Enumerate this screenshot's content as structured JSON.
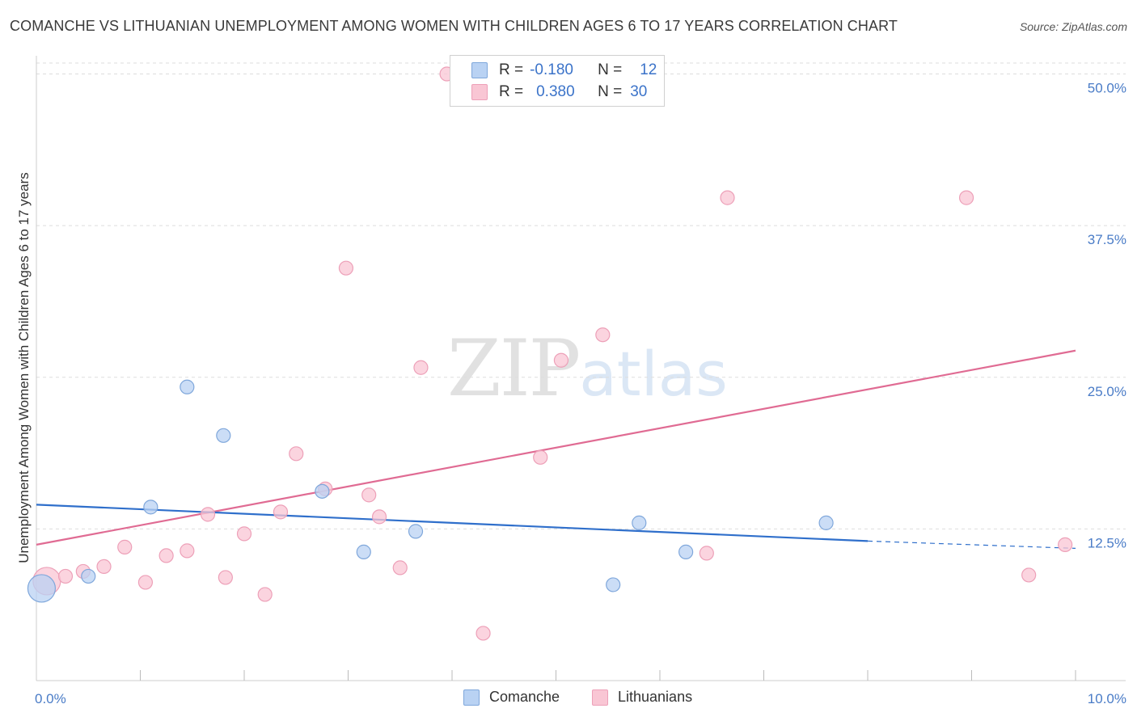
{
  "title": "COMANCHE VS LITHUANIAN UNEMPLOYMENT AMONG WOMEN WITH CHILDREN AGES 6 TO 17 YEARS CORRELATION CHART",
  "source": "Source: ZipAtlas.com",
  "watermark": {
    "zip": "ZIP",
    "atlas": "atlas"
  },
  "legend": {
    "comanche": {
      "r_label": "R =",
      "r_value": "-0.180",
      "n_label": "N =",
      "n_value": "12"
    },
    "lithuanians": {
      "r_label": "R =",
      "r_value": "0.380",
      "n_label": "N =",
      "n_value": "30"
    }
  },
  "bottom_legend": {
    "comanche": "Comanche",
    "lithuanians": "Lithuanians"
  },
  "colors": {
    "comanche_fill": "#b9d2f3",
    "comanche_stroke": "#7fa7db",
    "comanche_line": "#2f6fcb",
    "lithuanians_fill": "#f9c6d4",
    "lithuanians_stroke": "#eda0b8",
    "lithuanians_line": "#e06b93",
    "tick_label": "#4a7cc7",
    "grid": "#dddddd"
  },
  "chart_data": {
    "type": "scatter",
    "title": "COMANCHE VS LITHUANIAN UNEMPLOYMENT AMONG WOMEN WITH CHILDREN AGES 6 TO 17 YEARS CORRELATION CHART",
    "xlabel": "",
    "ylabel": "Unemployment Among Women with Children Ages 6 to 17 years",
    "xlim": [
      0,
      10
    ],
    "ylim": [
      0,
      51.5
    ],
    "x_tick_labels": [
      "0.0%",
      "10.0%"
    ],
    "y_ticks": [
      12.5,
      25.0,
      37.5,
      50.0
    ],
    "y_tick_labels": [
      "12.5%",
      "25.0%",
      "37.5%",
      "50.0%"
    ],
    "series": [
      {
        "name": "Comanche",
        "points": [
          {
            "x": 0.05,
            "y": 7.6,
            "big": true
          },
          {
            "x": 0.5,
            "y": 8.6
          },
          {
            "x": 1.1,
            "y": 14.3
          },
          {
            "x": 1.45,
            "y": 24.2
          },
          {
            "x": 1.8,
            "y": 20.2
          },
          {
            "x": 2.75,
            "y": 15.6
          },
          {
            "x": 3.15,
            "y": 10.6
          },
          {
            "x": 3.65,
            "y": 12.3
          },
          {
            "x": 5.55,
            "y": 7.9
          },
          {
            "x": 5.8,
            "y": 13.0
          },
          {
            "x": 6.25,
            "y": 10.6
          },
          {
            "x": 7.6,
            "y": 13.0
          }
        ],
        "trend": {
          "x0": 0,
          "y0": 14.5,
          "x1": 8.0,
          "y1": 11.5,
          "dashed_to_x": 10,
          "dashed_to_y": 10.9
        }
      },
      {
        "name": "Lithuanians",
        "points": [
          {
            "x": 0.1,
            "y": 8.2,
            "big": true
          },
          {
            "x": 0.28,
            "y": 8.6
          },
          {
            "x": 0.45,
            "y": 9.0
          },
          {
            "x": 0.65,
            "y": 9.4
          },
          {
            "x": 0.85,
            "y": 11.0
          },
          {
            "x": 1.05,
            "y": 8.1
          },
          {
            "x": 1.25,
            "y": 10.3
          },
          {
            "x": 1.45,
            "y": 10.7
          },
          {
            "x": 1.65,
            "y": 13.7
          },
          {
            "x": 1.82,
            "y": 8.5
          },
          {
            "x": 2.0,
            "y": 12.1
          },
          {
            "x": 2.2,
            "y": 7.1
          },
          {
            "x": 2.35,
            "y": 13.9
          },
          {
            "x": 2.5,
            "y": 18.7
          },
          {
            "x": 2.78,
            "y": 15.8
          },
          {
            "x": 2.98,
            "y": 34.0
          },
          {
            "x": 3.2,
            "y": 15.3
          },
          {
            "x": 3.3,
            "y": 13.5
          },
          {
            "x": 3.5,
            "y": 9.3
          },
          {
            "x": 3.7,
            "y": 25.8
          },
          {
            "x": 3.95,
            "y": 50.0
          },
          {
            "x": 4.3,
            "y": 3.9
          },
          {
            "x": 4.85,
            "y": 18.4
          },
          {
            "x": 5.05,
            "y": 26.4
          },
          {
            "x": 5.45,
            "y": 28.5
          },
          {
            "x": 6.45,
            "y": 10.5
          },
          {
            "x": 6.65,
            "y": 39.8
          },
          {
            "x": 8.95,
            "y": 39.8
          },
          {
            "x": 9.55,
            "y": 8.7
          },
          {
            "x": 9.9,
            "y": 11.2
          }
        ],
        "trend": {
          "x0": 0,
          "y0": 11.2,
          "x1": 10,
          "y1": 27.2
        }
      }
    ]
  }
}
